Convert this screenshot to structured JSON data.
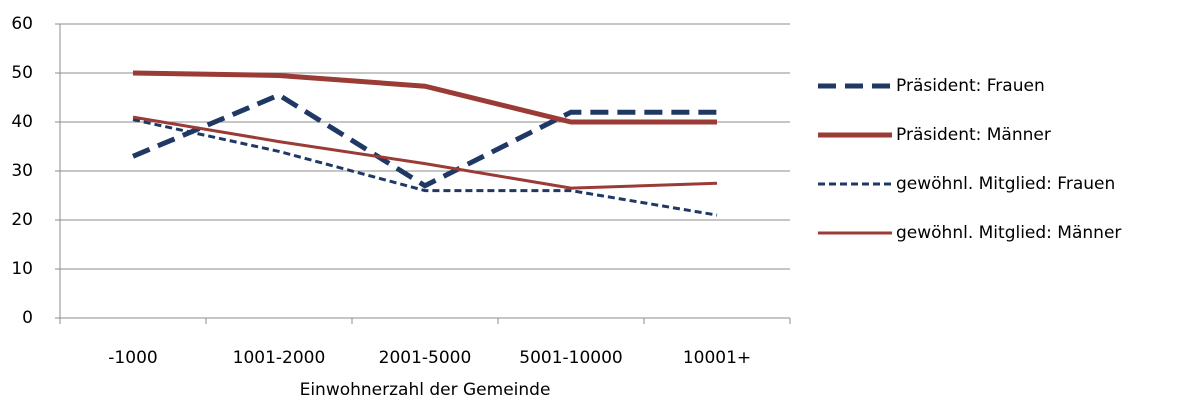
{
  "chart_data": {
    "type": "line",
    "x_label": "Einwohnerzahl der Gemeinde",
    "categories": [
      "-1000",
      "1001-2000",
      "2001-5000",
      "5001-10000",
      "10001+"
    ],
    "series": [
      {
        "name": "Präsident: Frauen",
        "color": "#1f3864",
        "dash": "dashed",
        "width": "thick",
        "values": [
          33,
          45.5,
          27,
          42,
          42
        ]
      },
      {
        "name": "Präsident: Männer",
        "color": "#9b3b36",
        "dash": "solid",
        "width": "thick",
        "values": [
          50,
          49.5,
          47.3,
          40,
          40
        ]
      },
      {
        "name": "gewöhnl. Mitglied: Frauen",
        "color": "#1f3864",
        "dash": "dotted",
        "width": "thin",
        "values": [
          40.5,
          34,
          26,
          26,
          21
        ]
      },
      {
        "name": "gewöhnl. Mitglied: Männer",
        "color": "#9b3b36",
        "dash": "solid",
        "width": "thin",
        "values": [
          41,
          36,
          31.5,
          26.5,
          27.5
        ]
      }
    ],
    "ylim": [
      0,
      60
    ],
    "yticks": [
      0,
      10,
      20,
      30,
      40,
      50,
      60
    ],
    "grid": true,
    "legend": "right"
  }
}
